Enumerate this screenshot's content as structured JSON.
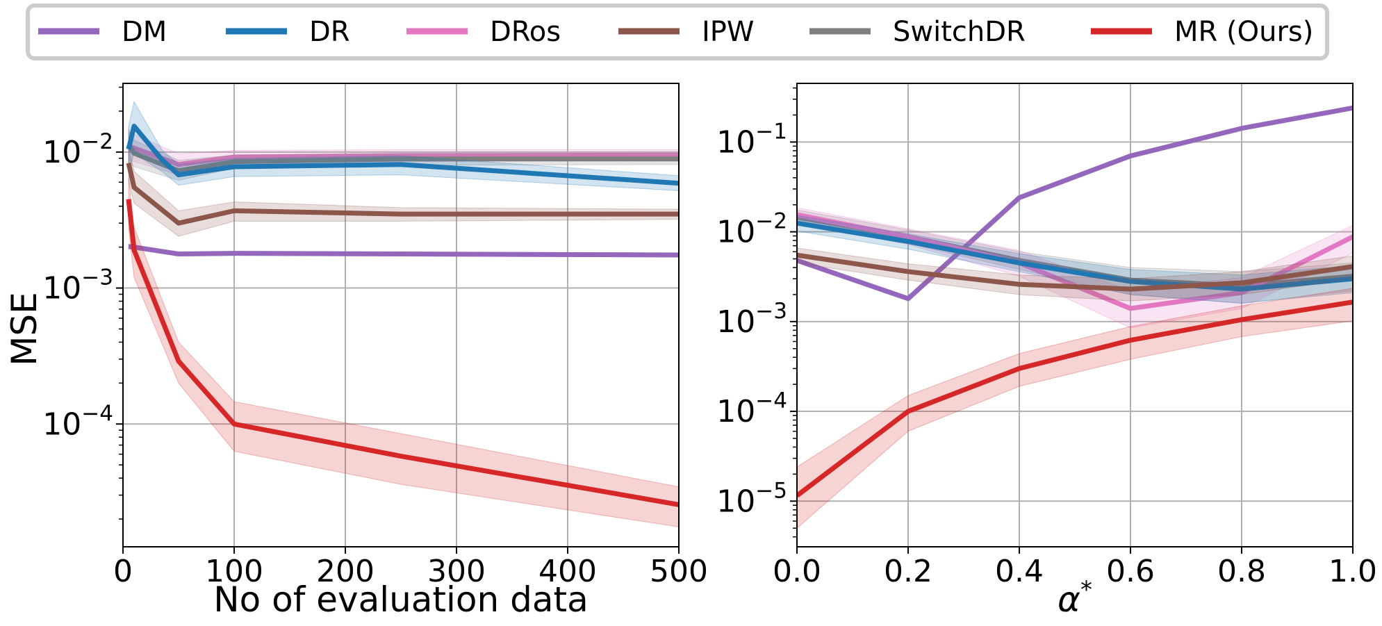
{
  "legend": {
    "placement": "top-center",
    "entries": [
      {
        "name": "DM",
        "color": "#9467bd"
      },
      {
        "name": "DR",
        "color": "#1f77b4"
      },
      {
        "name": "DRos",
        "color": "#e377c2"
      },
      {
        "name": "IPW",
        "color": "#8c564b"
      },
      {
        "name": "SwitchDR",
        "color": "#7f7f7f"
      },
      {
        "name": "MR (Ours)",
        "color": "#d62728"
      }
    ]
  },
  "chart_data": [
    {
      "type": "line",
      "xlabel": "No of evaluation data",
      "ylabel": "MSE",
      "yscale": "log",
      "grid": true,
      "xlim": [
        0,
        500
      ],
      "ylim": [
        1.25e-05,
        0.032
      ],
      "xticks": [
        0,
        100,
        200,
        300,
        400,
        500
      ],
      "xtick_labels": [
        "0",
        "100",
        "200",
        "300",
        "400",
        "500"
      ],
      "yticks": [
        0.0001,
        0.001,
        0.01
      ],
      "ytick_labels": [
        {
          "base": "10",
          "exp": "−4"
        },
        {
          "base": "10",
          "exp": "−3"
        },
        {
          "base": "10",
          "exp": "−2"
        }
      ],
      "series": [
        {
          "name": "DM",
          "color": "#9467bd",
          "x": [
            5,
            10,
            50,
            100,
            250,
            500
          ],
          "y": [
            0.00202,
            0.002,
            0.00178,
            0.0018,
            0.00178,
            0.00175
          ],
          "lower": [
            0.00194,
            0.00192,
            0.00172,
            0.00174,
            0.00172,
            0.00169
          ],
          "upper": [
            0.0021,
            0.00208,
            0.00184,
            0.00186,
            0.00184,
            0.00181
          ]
        },
        {
          "name": "DRos",
          "color": "#e377c2",
          "x": [
            5,
            10,
            50,
            100,
            250,
            500
          ],
          "y": [
            0.011,
            0.0107,
            0.0081,
            0.0092,
            0.0094,
            0.0095
          ],
          "lower": [
            0.0087,
            0.0085,
            0.0068,
            0.0082,
            0.0085,
            0.0087
          ],
          "upper": [
            0.014,
            0.0135,
            0.0097,
            0.0103,
            0.0104,
            0.0104
          ]
        },
        {
          "name": "SwitchDR",
          "color": "#7f7f7f",
          "x": [
            5,
            10,
            50,
            100,
            250,
            500
          ],
          "y": [
            0.0113,
            0.0098,
            0.0073,
            0.0085,
            0.0089,
            0.0089
          ],
          "lower": [
            0.0085,
            0.0078,
            0.0062,
            0.0076,
            0.008,
            0.0081
          ],
          "upper": [
            0.0148,
            0.0122,
            0.0087,
            0.0095,
            0.0098,
            0.0098
          ]
        },
        {
          "name": "DR",
          "color": "#1f77b4",
          "x": [
            5,
            10,
            35,
            50,
            100,
            250,
            500
          ],
          "y": [
            0.0105,
            0.0155,
            0.0088,
            0.0068,
            0.0078,
            0.0081,
            0.0059
          ],
          "lower": [
            0.0072,
            0.0098,
            0.0072,
            0.0057,
            0.0066,
            0.0068,
            0.0052
          ],
          "upper": [
            0.0155,
            0.0235,
            0.0104,
            0.0081,
            0.009,
            0.0094,
            0.0067
          ]
        },
        {
          "name": "IPW",
          "color": "#8c564b",
          "x": [
            5,
            10,
            50,
            100,
            250,
            500
          ],
          "y": [
            0.0083,
            0.0055,
            0.003,
            0.0037,
            0.0035,
            0.0035
          ],
          "lower": [
            0.0062,
            0.0042,
            0.0024,
            0.0031,
            0.0031,
            0.0032
          ],
          "upper": [
            0.011,
            0.0072,
            0.0037,
            0.0043,
            0.0039,
            0.0038
          ]
        },
        {
          "name": "MR (Ours)",
          "color": "#d62728",
          "x": [
            5,
            10,
            50,
            100,
            250,
            500
          ],
          "y": [
            0.0045,
            0.0019,
            0.00029,
            0.0001,
            5.8e-05,
            2.55e-05
          ],
          "lower": [
            0.0028,
            0.0012,
            0.0002,
            6.3e-05,
            3.6e-05,
            1.75e-05
          ],
          "upper": [
            0.0065,
            0.0028,
            0.0004,
            0.000146,
            8.5e-05,
            3.45e-05
          ]
        }
      ]
    },
    {
      "type": "line",
      "xlabel": "α*",
      "ylabel": "",
      "yscale": "log",
      "grid": true,
      "xlim": [
        0.0,
        1.0
      ],
      "ylim": [
        3.1e-06,
        0.45
      ],
      "xticks": [
        0.0,
        0.2,
        0.4,
        0.6,
        0.8,
        1.0
      ],
      "xtick_labels": [
        "0.0",
        "0.2",
        "0.4",
        "0.6",
        "0.8",
        "1.0"
      ],
      "yticks": [
        1e-05,
        0.0001,
        0.001,
        0.01,
        0.1
      ],
      "ytick_labels": [
        {
          "base": "10",
          "exp": "−5"
        },
        {
          "base": "10",
          "exp": "−4"
        },
        {
          "base": "10",
          "exp": "−3"
        },
        {
          "base": "10",
          "exp": "−2"
        },
        {
          "base": "10",
          "exp": "−1"
        }
      ],
      "series": [
        {
          "name": "DM",
          "color": "#9467bd",
          "x": [
            0.0,
            0.2,
            0.4,
            0.6,
            0.8,
            1.0
          ],
          "y": [
            0.0048,
            0.0018,
            0.024,
            0.07,
            0.142,
            0.24
          ],
          "lower": [
            0.0047,
            0.00176,
            0.0235,
            0.0685,
            0.139,
            0.235
          ],
          "upper": [
            0.0049,
            0.00184,
            0.0245,
            0.0715,
            0.145,
            0.245
          ]
        },
        {
          "name": "SwitchDR",
          "color": "#7f7f7f",
          "x": [
            0.0,
            0.2,
            0.4,
            0.6,
            0.8,
            1.0
          ],
          "y": [
            0.0145,
            0.0088,
            0.0048,
            0.0029,
            0.0025,
            0.0032
          ],
          "lower": [
            0.012,
            0.0074,
            0.0038,
            0.002,
            0.0016,
            0.0022
          ],
          "upper": [
            0.0175,
            0.0105,
            0.006,
            0.004,
            0.0036,
            0.0045
          ]
        },
        {
          "name": "DRos",
          "color": "#e377c2",
          "x": [
            0.0,
            0.2,
            0.4,
            0.6,
            0.8,
            1.0
          ],
          "y": [
            0.0155,
            0.0088,
            0.0045,
            0.0014,
            0.0021,
            0.0088
          ],
          "lower": [
            0.0128,
            0.0072,
            0.0032,
            0.00085,
            0.0014,
            0.0058
          ],
          "upper": [
            0.0185,
            0.0108,
            0.0062,
            0.0022,
            0.0031,
            0.0118
          ]
        },
        {
          "name": "DR",
          "color": "#1f77b4",
          "x": [
            0.0,
            0.2,
            0.4,
            0.6,
            0.8,
            1.0
          ],
          "y": [
            0.0125,
            0.0078,
            0.0045,
            0.0028,
            0.0023,
            0.003
          ],
          "lower": [
            0.0102,
            0.0064,
            0.0036,
            0.002,
            0.0016,
            0.0021
          ],
          "upper": [
            0.0152,
            0.0095,
            0.0057,
            0.0038,
            0.0033,
            0.0042
          ]
        },
        {
          "name": "IPW",
          "color": "#8c564b",
          "x": [
            0.0,
            0.2,
            0.4,
            0.6,
            0.8,
            1.0
          ],
          "y": [
            0.0055,
            0.0036,
            0.0026,
            0.0023,
            0.0027,
            0.0041
          ],
          "lower": [
            0.0045,
            0.0029,
            0.002,
            0.0017,
            0.002,
            0.003
          ],
          "upper": [
            0.0066,
            0.0044,
            0.0033,
            0.003,
            0.0036,
            0.0054
          ]
        },
        {
          "name": "MR (Ours)",
          "color": "#d62728",
          "x": [
            0.0,
            0.2,
            0.4,
            0.6,
            0.8,
            1.0
          ],
          "y": [
            1.15e-05,
            0.0001,
            0.0003,
            0.00062,
            0.00105,
            0.00165
          ],
          "lower": [
            5e-06,
            6e-05,
            0.00019,
            0.00038,
            0.00068,
            0.00102
          ],
          "upper": [
            2.4e-05,
            0.00015,
            0.00044,
            0.00088,
            0.0015,
            0.00235
          ]
        }
      ]
    }
  ]
}
